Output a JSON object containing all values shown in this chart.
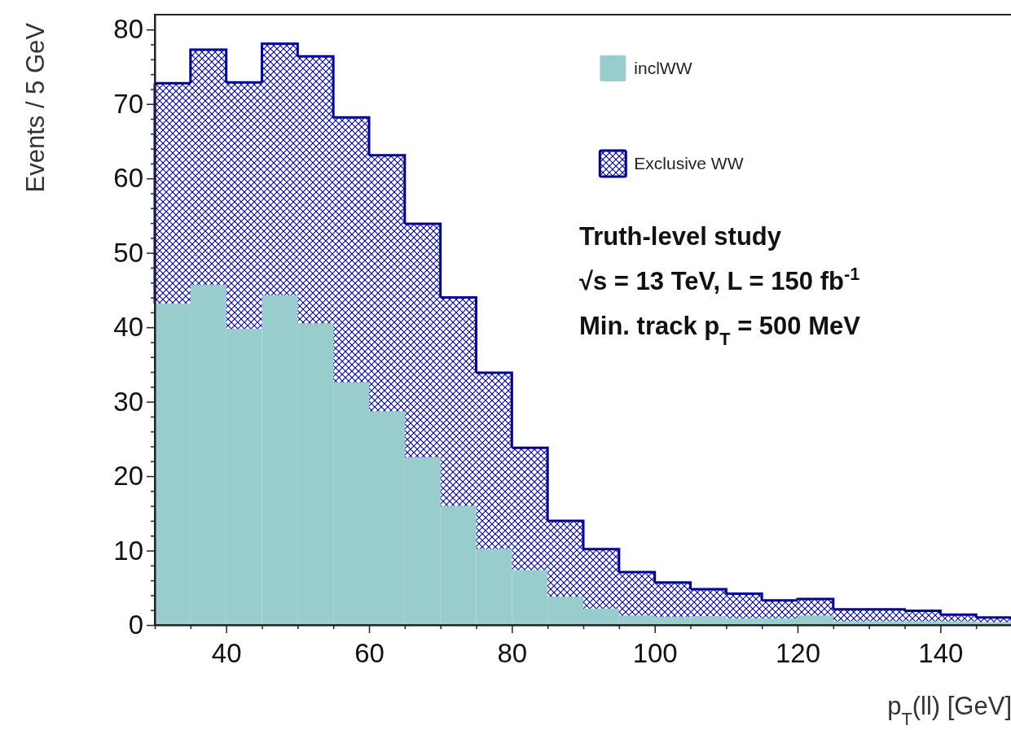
{
  "chart_data": {
    "type": "bar",
    "stacked": true,
    "x": [
      32.5,
      37.5,
      42.5,
      47.5,
      52.5,
      57.5,
      62.5,
      67.5,
      72.5,
      77.5,
      82.5,
      87.5,
      92.5,
      97.5,
      102.5,
      107.5,
      112.5,
      117.5,
      122.5,
      127.5,
      132.5,
      137.5,
      142.5,
      147.5
    ],
    "series": [
      {
        "name": "inclWW",
        "color": "#99cccc",
        "values": [
          43.2,
          45.7,
          39.8,
          44.3,
          40.5,
          32.6,
          28.7,
          22.5,
          16.0,
          10.2,
          7.4,
          3.8,
          2.2,
          1.3,
          1.1,
          1.2,
          0.9,
          0.9,
          1.3,
          0.5,
          0.5,
          0.5,
          0.5,
          0.4
        ]
      },
      {
        "name": "Exclusive WW",
        "color": "#000099",
        "values": [
          29.6,
          31.6,
          33.1,
          33.8,
          35.9,
          35.6,
          34.4,
          31.4,
          28.0,
          23.7,
          16.4,
          10.2,
          8.0,
          5.8,
          4.6,
          3.6,
          3.3,
          2.4,
          2.2,
          1.6,
          1.6,
          1.4,
          0.9,
          0.6
        ]
      }
    ],
    "xlim": [
      30,
      150
    ],
    "xticks": [
      {
        "value": 30,
        "label": null
      },
      {
        "value": 35,
        "label": null
      },
      40,
      {
        "value": 45,
        "label": null
      },
      {
        "value": 50,
        "label": null
      },
      {
        "value": 55,
        "label": null
      },
      60,
      {
        "value": 65,
        "label": null
      },
      {
        "value": 70,
        "label": null
      },
      {
        "value": 75,
        "label": null
      },
      80,
      {
        "value": 85,
        "label": null
      },
      {
        "value": 90,
        "label": null
      },
      {
        "value": 95,
        "label": null
      },
      100,
      {
        "value": 105,
        "label": null
      },
      {
        "value": 110,
        "label": null
      },
      {
        "value": 115,
        "label": null
      },
      120,
      {
        "value": 125,
        "label": null
      },
      {
        "value": 130,
        "label": null
      },
      {
        "value": 135,
        "label": null
      },
      140,
      {
        "value": 145,
        "label": null
      },
      {
        "value": 150,
        "label": null
      }
    ],
    "ylim": [
      0,
      82
    ],
    "yticks": [
      0,
      {
        "value": 2,
        "label": null
      },
      {
        "value": 4,
        "label": null
      },
      {
        "value": 6,
        "label": null
      },
      {
        "value": 8,
        "label": null
      },
      10,
      {
        "value": 12,
        "label": null
      },
      {
        "value": 14,
        "label": null
      },
      {
        "value": 16,
        "label": null
      },
      {
        "value": 18,
        "label": null
      },
      20,
      {
        "value": 22,
        "label": null
      },
      {
        "value": 24,
        "label": null
      },
      {
        "value": 26,
        "label": null
      },
      {
        "value": 28,
        "label": null
      },
      30,
      {
        "value": 32,
        "label": null
      },
      {
        "value": 34,
        "label": null
      },
      {
        "value": 36,
        "label": null
      },
      {
        "value": 38,
        "label": null
      },
      40,
      {
        "value": 42,
        "label": null
      },
      {
        "value": 44,
        "label": null
      },
      {
        "value": 46,
        "label": null
      },
      {
        "value": 48,
        "label": null
      },
      50,
      {
        "value": 52,
        "label": null
      },
      {
        "value": 54,
        "label": null
      },
      {
        "value": 56,
        "label": null
      },
      {
        "value": 58,
        "label": null
      },
      60,
      {
        "value": 62,
        "label": null
      },
      {
        "value": 64,
        "label": null
      },
      {
        "value": 66,
        "label": null
      },
      {
        "value": 68,
        "label": null
      },
      70,
      {
        "value": 72,
        "label": null
      },
      {
        "value": 74,
        "label": null
      },
      {
        "value": 76,
        "label": null
      },
      {
        "value": 78,
        "label": null
      },
      80
    ],
    "xlabel": "p$_{T}$(ll) [GeV]",
    "ylabel": "Events / 5 GeV",
    "annotations": [
      "Truth-level study",
      "√s = 13 TeV, L = 150 fb$^{-1}$",
      "Min. track p$_{T}$ = 500 MeV"
    ],
    "legend": "top right",
    "grid": false
  }
}
